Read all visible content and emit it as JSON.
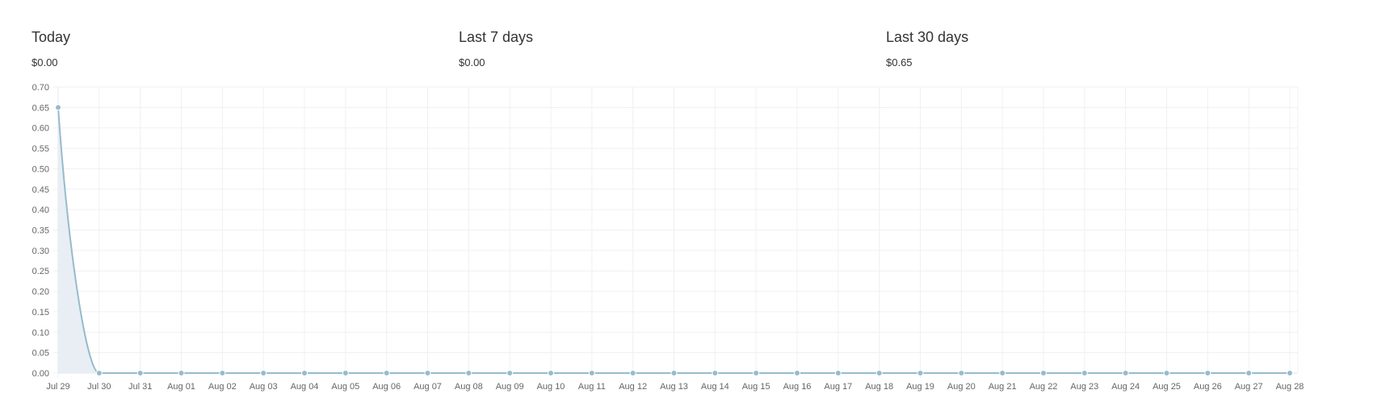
{
  "stats": [
    {
      "label": "Today",
      "value": "$0.00"
    },
    {
      "label": "Last 7 days",
      "value": "$0.00"
    },
    {
      "label": "Last 30 days",
      "value": "$0.65"
    }
  ],
  "colors": {
    "line": "#97bbcd",
    "fill": "#e8eef4",
    "grid": "#f0f0f0",
    "tick_text": "#666666"
  },
  "chart_data": {
    "type": "line",
    "title": "",
    "xlabel": "",
    "ylabel": "",
    "ylim": [
      0,
      0.7
    ],
    "y_ticks": [
      "0.00",
      "0.05",
      "0.10",
      "0.15",
      "0.20",
      "0.25",
      "0.30",
      "0.35",
      "0.40",
      "0.45",
      "0.50",
      "0.55",
      "0.60",
      "0.65",
      "0.70"
    ],
    "grid": true,
    "legend": "none",
    "categories": [
      "Jul 29",
      "Jul 30",
      "Jul 31",
      "Aug 01",
      "Aug 02",
      "Aug 03",
      "Aug 04",
      "Aug 05",
      "Aug 06",
      "Aug 07",
      "Aug 08",
      "Aug 09",
      "Aug 10",
      "Aug 11",
      "Aug 12",
      "Aug 13",
      "Aug 14",
      "Aug 15",
      "Aug 16",
      "Aug 17",
      "Aug 18",
      "Aug 19",
      "Aug 20",
      "Aug 21",
      "Aug 22",
      "Aug 23",
      "Aug 24",
      "Aug 25",
      "Aug 26",
      "Aug 27",
      "Aug 28"
    ],
    "series": [
      {
        "values": [
          0.65,
          0,
          0,
          0,
          0,
          0,
          0,
          0,
          0,
          0,
          0,
          0,
          0,
          0,
          0,
          0,
          0,
          0,
          0,
          0,
          0,
          0,
          0,
          0,
          0,
          0,
          0,
          0,
          0,
          0,
          0
        ]
      }
    ]
  }
}
